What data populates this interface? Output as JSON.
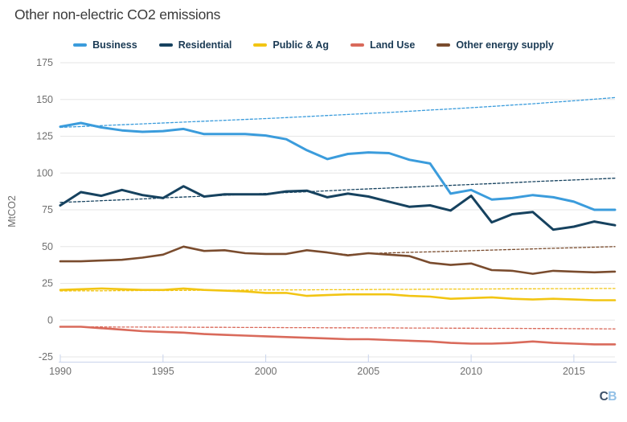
{
  "chart_data": {
    "type": "line",
    "title": "Other non-electric CO2 emissions",
    "xlabel": "",
    "ylabel": "MtCO2",
    "xlim": [
      1990,
      2017
    ],
    "ylim": [
      -25,
      175
    ],
    "xticks": [
      1990,
      1995,
      2000,
      2005,
      2010,
      2015
    ],
    "yticks": [
      -25,
      0,
      25,
      50,
      75,
      100,
      125,
      150,
      175
    ],
    "grid": "horizontal",
    "legend_position": "top",
    "x": [
      1990,
      1991,
      1992,
      1993,
      1994,
      1995,
      1996,
      1997,
      1998,
      1999,
      2000,
      2001,
      2002,
      2003,
      2004,
      2005,
      2006,
      2007,
      2008,
      2009,
      2010,
      2011,
      2012,
      2013,
      2014,
      2015,
      2016,
      2017
    ],
    "series": [
      {
        "name": "Business (dashed trend)",
        "color": "#3b9cdc",
        "style": "dashed",
        "in_legend": false,
        "values": [
          131,
          131.6,
          132.2,
          132.8,
          133.4,
          134,
          134.6,
          135.2,
          135.8,
          136.4,
          137,
          137.7,
          138.4,
          139.1,
          139.8,
          140.5,
          141.2,
          142,
          142.8,
          143.6,
          144.4,
          145.3,
          146.2,
          147.1,
          148.1,
          149.1,
          150.2,
          151.3
        ]
      },
      {
        "name": "Residential (dashed trend)",
        "color": "#16425f",
        "style": "dashed",
        "in_legend": false,
        "values": [
          80,
          80.6,
          81.2,
          81.8,
          82.4,
          83.1,
          83.7,
          84.3,
          84.9,
          85.5,
          86.1,
          86.7,
          87.3,
          87.9,
          88.6,
          89.2,
          89.8,
          90.4,
          91,
          91.6,
          92.2,
          92.8,
          93.4,
          94.1,
          94.7,
          95.3,
          95.9,
          96.5
        ]
      },
      {
        "name": "Public & Ag (dashed trend)",
        "color": "#f2c513",
        "style": "dashed",
        "in_legend": false,
        "values": [
          19.8,
          19.9,
          19.9,
          20,
          20.1,
          20.1,
          20.2,
          20.3,
          20.3,
          20.4,
          20.5,
          20.5,
          20.6,
          20.7,
          20.7,
          20.8,
          20.9,
          20.9,
          21,
          21.1,
          21.1,
          21.2,
          21.3,
          21.3,
          21.4,
          21.4,
          21.5,
          21.5
        ]
      },
      {
        "name": "Land Use (dashed trend)",
        "color": "#d96a5b",
        "style": "dashed",
        "in_legend": false,
        "values": [
          -4.5,
          -4.6,
          -4.6,
          -4.7,
          -4.7,
          -4.8,
          -4.8,
          -4.9,
          -4.9,
          -5,
          -5,
          -5.1,
          -5.1,
          -5.2,
          -5.2,
          -5.3,
          -5.3,
          -5.4,
          -5.4,
          -5.5,
          -5.5,
          -5.6,
          -5.6,
          -5.7,
          -5.7,
          -5.8,
          -5.9,
          -6
        ]
      },
      {
        "name": "Other energy supply (dashed trend)",
        "color": "#7a4c2e",
        "style": "dashed",
        "in_legend": false,
        "values": [
          40,
          40,
          40.5,
          41,
          42.5,
          44.5,
          50,
          47,
          47.5,
          45.5,
          45,
          45,
          47.5,
          46,
          44.5,
          45.3,
          45.7,
          46.1,
          46.4,
          46.8,
          47.2,
          47.6,
          48,
          48.4,
          48.8,
          49.2,
          49.6,
          50
        ]
      },
      {
        "name": "Business",
        "color": "#3b9cdc",
        "style": "solid",
        "in_legend": true,
        "values": [
          131.5,
          134,
          131,
          129,
          128,
          128.5,
          130,
          126.5,
          126.5,
          126.5,
          125.5,
          123,
          115.5,
          109.5,
          113,
          114,
          113.5,
          109,
          106.5,
          86,
          88.5,
          82,
          83,
          85,
          83.5,
          80.5,
          75,
          75
        ]
      },
      {
        "name": "Residential",
        "color": "#16425f",
        "style": "solid",
        "in_legend": true,
        "values": [
          78,
          87,
          84.5,
          88.5,
          85,
          83,
          91,
          84,
          85.5,
          85.5,
          85.5,
          87.5,
          88,
          83.5,
          86,
          84,
          80.5,
          77,
          78,
          74.5,
          84.5,
          66.5,
          72,
          73.5,
          61.5,
          63.5,
          67,
          64.5
        ]
      },
      {
        "name": "Public & Ag",
        "color": "#f2c513",
        "style": "solid",
        "in_legend": true,
        "values": [
          20.5,
          21,
          21.5,
          21,
          20.5,
          20.5,
          21.5,
          20.5,
          20,
          19.5,
          18.5,
          18.5,
          16.5,
          17,
          17.5,
          17.5,
          17.5,
          16.5,
          16,
          14.5,
          15,
          15.5,
          14.5,
          14,
          14.5,
          14,
          13.5,
          13.5
        ]
      },
      {
        "name": "Land Use",
        "color": "#d96a5b",
        "style": "solid",
        "in_legend": true,
        "values": [
          -4.5,
          -4.5,
          -5.5,
          -6.5,
          -7.5,
          -8,
          -8.5,
          -9.5,
          -10,
          -10.5,
          -11,
          -11.5,
          -12,
          -12.5,
          -13,
          -13,
          -13.5,
          -14,
          -14.5,
          -15.5,
          -16,
          -16,
          -15.5,
          -14.5,
          -15.5,
          -16,
          -16.5,
          -16.5
        ]
      },
      {
        "name": "Other energy supply",
        "color": "#7a4c2e",
        "style": "solid",
        "in_legend": true,
        "values": [
          40,
          40,
          40.5,
          41,
          42.5,
          44.5,
          50,
          47,
          47.5,
          45.5,
          45,
          45,
          47.5,
          46,
          44,
          45.5,
          44.5,
          43.5,
          39,
          37.5,
          38.5,
          34,
          33.5,
          31.5,
          33.5,
          33,
          32.5,
          33
        ]
      }
    ]
  },
  "style_colors": {
    "title": "#3a3a3a",
    "tick_label": "#6f6f6f",
    "legend_text": "#1a3a54",
    "gridline": "#e6e6e6",
    "axis_line": "#c9d4ec",
    "logo_c": "#3e526a",
    "logo_b": "#92c0e6"
  },
  "branding": {
    "logo_text_c": "C",
    "logo_text_b": "B"
  }
}
